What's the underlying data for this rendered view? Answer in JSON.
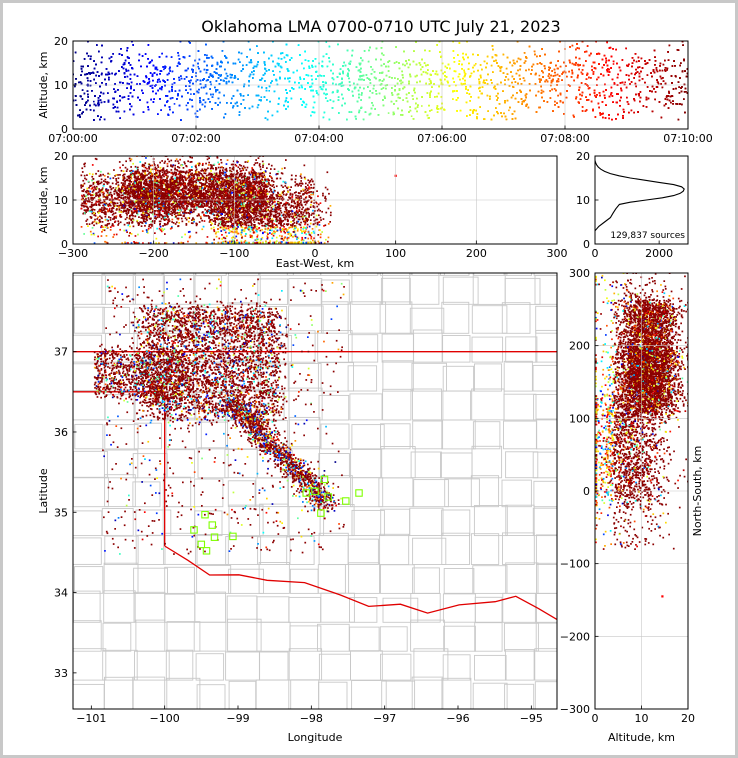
{
  "title": "Oklahoma LMA 0700-0710 UTC July 21, 2023",
  "colors": {
    "state_line": "#e00000",
    "county_line": "#c8c8c8",
    "station": "#7fff00",
    "background": "#ffffff"
  },
  "chart_data": [
    {
      "id": "time-height",
      "type": "scatter",
      "xlabel": "",
      "ylabel": "Altitude, km",
      "x_ticks": [
        "07:00:00",
        "07:02:00",
        "07:04:00",
        "07:06:00",
        "07:08:00",
        "07:10:00"
      ],
      "xlim": [
        "07:00:00",
        "07:10:00"
      ],
      "y_ticks": [
        0,
        10,
        20
      ],
      "ylim": [
        0,
        20
      ],
      "color_by": "time",
      "grid": true
    },
    {
      "id": "ew-height",
      "type": "scatter",
      "xlabel": "East-West, km",
      "ylabel": "Altitude, km",
      "x_ticks": [
        -300,
        -200,
        -100,
        0,
        100,
        200,
        300
      ],
      "xlim": [
        -300,
        300
      ],
      "y_ticks": [
        0,
        10,
        20
      ],
      "ylim": [
        0,
        20
      ],
      "grid": true
    },
    {
      "id": "altitude-histogram",
      "type": "line",
      "x_ticks": [
        0,
        2000
      ],
      "xlim": [
        0,
        2900
      ],
      "y_ticks": [
        0,
        10,
        20
      ],
      "ylim": [
        0,
        20
      ],
      "annotation": "129,837 sources",
      "profile": [
        {
          "x": 0,
          "y": 3
        },
        {
          "x": 120,
          "y": 4
        },
        {
          "x": 300,
          "y": 5
        },
        {
          "x": 480,
          "y": 6
        },
        {
          "x": 560,
          "y": 7
        },
        {
          "x": 650,
          "y": 8
        },
        {
          "x": 760,
          "y": 9
        },
        {
          "x": 1100,
          "y": 9.5
        },
        {
          "x": 1600,
          "y": 10
        },
        {
          "x": 2100,
          "y": 10.5
        },
        {
          "x": 2450,
          "y": 11
        },
        {
          "x": 2650,
          "y": 11.5
        },
        {
          "x": 2750,
          "y": 12
        },
        {
          "x": 2780,
          "y": 12.5
        },
        {
          "x": 2700,
          "y": 13
        },
        {
          "x": 2450,
          "y": 13.5
        },
        {
          "x": 2000,
          "y": 14
        },
        {
          "x": 1550,
          "y": 14.5
        },
        {
          "x": 1100,
          "y": 15
        },
        {
          "x": 750,
          "y": 15.5
        },
        {
          "x": 480,
          "y": 16
        },
        {
          "x": 300,
          "y": 16.5
        },
        {
          "x": 180,
          "y": 17
        },
        {
          "x": 100,
          "y": 17.5
        },
        {
          "x": 50,
          "y": 18
        },
        {
          "x": 20,
          "y": 18.5
        },
        {
          "x": 0,
          "y": 19
        }
      ]
    },
    {
      "id": "plan-view",
      "type": "scatter",
      "xlabel": "Longitude",
      "ylabel": "Latitude",
      "x_ticks": [
        -101,
        -100,
        -99,
        -98,
        -97,
        -96,
        -95
      ],
      "xlim": [
        -101.25,
        -94.65
      ],
      "y_ticks": [
        33,
        34,
        35,
        36,
        37
      ],
      "ylim": [
        32.55,
        37.98
      ],
      "stations": [
        {
          "lon": -98.07,
          "lat": 35.24
        },
        {
          "lon": -97.95,
          "lat": 35.26
        },
        {
          "lon": -97.82,
          "lat": 35.41
        },
        {
          "lon": -97.77,
          "lat": 35.19
        },
        {
          "lon": -97.53,
          "lat": 35.14
        },
        {
          "lon": -97.35,
          "lat": 35.24
        },
        {
          "lon": -97.87,
          "lat": 34.99
        },
        {
          "lon": -99.45,
          "lat": 34.97
        },
        {
          "lon": -99.35,
          "lat": 34.84
        },
        {
          "lon": -99.6,
          "lat": 34.78
        },
        {
          "lon": -99.32,
          "lat": 34.69
        },
        {
          "lon": -99.5,
          "lat": 34.6
        },
        {
          "lon": -99.43,
          "lat": 34.52
        },
        {
          "lon": -99.07,
          "lat": 34.7
        }
      ]
    },
    {
      "id": "ns-height",
      "type": "scatter",
      "xlabel": "Altitude, km",
      "ylabel": "North-South, km",
      "x_ticks": [
        0,
        10,
        20
      ],
      "xlim": [
        0,
        20
      ],
      "y_ticks": [
        -300,
        -200,
        -100,
        0,
        100,
        200,
        300
      ],
      "ylim": [
        -300,
        300
      ],
      "grid": true
    }
  ]
}
